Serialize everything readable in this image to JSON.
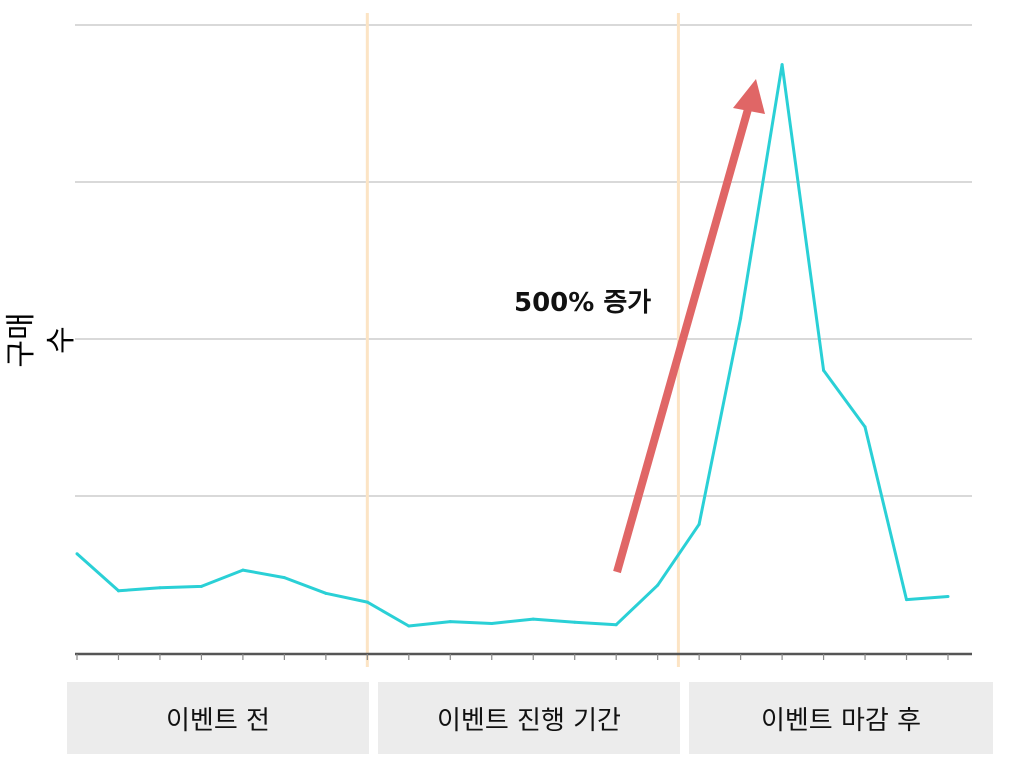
{
  "chart_data": {
    "type": "line",
    "title": "",
    "ylabel": "구매수",
    "xlabel": "",
    "grid": true,
    "ylim": [
      0,
      100
    ],
    "x": [
      0,
      1,
      2,
      3,
      4,
      5,
      6,
      7,
      8,
      9,
      10,
      11,
      12,
      13,
      14,
      15,
      16,
      17,
      18,
      19,
      20,
      21
    ],
    "series": [
      {
        "color": "#2ad0d6",
        "values": [
          15.8,
          9.9,
          10.4,
          10.6,
          13.2,
          12.0,
          9.5,
          8.1,
          4.3,
          5.0,
          4.7,
          5.4,
          4.9,
          4.5,
          10.8,
          20.5,
          53.3,
          93.7,
          45.0,
          36.0,
          8.5,
          9.0
        ]
      }
    ],
    "periods": [
      {
        "label": "이벤트 전"
      },
      {
        "label": "이벤트 진행 기간"
      },
      {
        "label": "이벤트 마감 후"
      }
    ],
    "period_boundaries": [
      7,
      14.5
    ],
    "annotation": {
      "text": "500% 증가",
      "arrow_color": "#e06666"
    },
    "colors": {
      "grid": "#d9d9d9",
      "boundary": "#fce4c4",
      "axis": "#555555",
      "arrow": "#e06666"
    }
  }
}
